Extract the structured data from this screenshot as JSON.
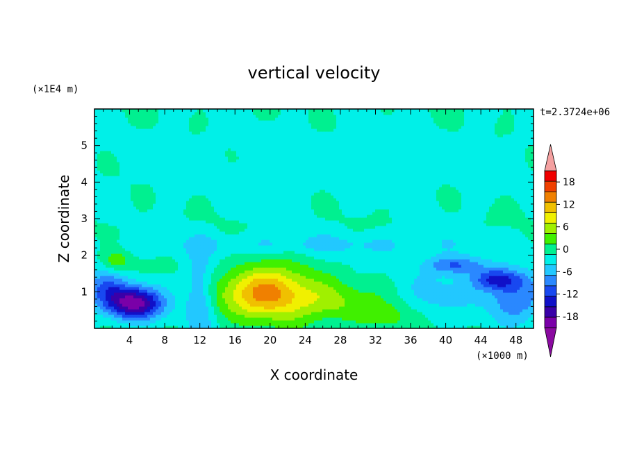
{
  "chart_data": {
    "type": "heatmap",
    "title": "vertical velocity",
    "xlabel": "X coordinate",
    "ylabel": "Z coordinate",
    "x_unit": "(×1000 m)",
    "y_unit": "(×1E4 m)",
    "time_label": "t=2.3724e+06",
    "xlim": [
      0,
      50
    ],
    "ylim": [
      0,
      6
    ],
    "x_ticks": [
      4,
      8,
      12,
      16,
      20,
      24,
      28,
      32,
      36,
      40,
      44,
      48
    ],
    "y_ticks": [
      1,
      2,
      3,
      4,
      5
    ],
    "colorbar": {
      "tick_labels": [
        "18",
        "12",
        "6",
        "0",
        "-6",
        "-12",
        "-18"
      ],
      "tick_values": [
        18,
        12,
        6,
        0,
        -6,
        -12,
        -18
      ],
      "levels": [
        -21,
        -18,
        -15,
        -12,
        -9,
        -6,
        -3,
        0,
        3,
        6,
        9,
        12,
        15,
        18,
        21
      ],
      "colors": [
        "#7a00a8",
        "#3a00a8",
        "#1010c8",
        "#1848f0",
        "#2a88ff",
        "#22c8ff",
        "#00f0e8",
        "#00f090",
        "#40f000",
        "#a0f000",
        "#f0f000",
        "#f0c000",
        "#f08000",
        "#f04000",
        "#f00000"
      ],
      "under_color": "#8a0aa0",
      "over_color": "#f4a0a0"
    },
    "features": [
      {
        "kind": "downdraft",
        "x": 4.5,
        "z": 0.7,
        "value": -15
      },
      {
        "kind": "updraft",
        "x": 19.5,
        "z": 1.0,
        "value": 14
      },
      {
        "kind": "downdraft",
        "x": 46,
        "z": 1.35,
        "value": -12
      },
      {
        "kind": "downdraft",
        "x": 41,
        "z": 1.8,
        "value": -10
      }
    ]
  }
}
